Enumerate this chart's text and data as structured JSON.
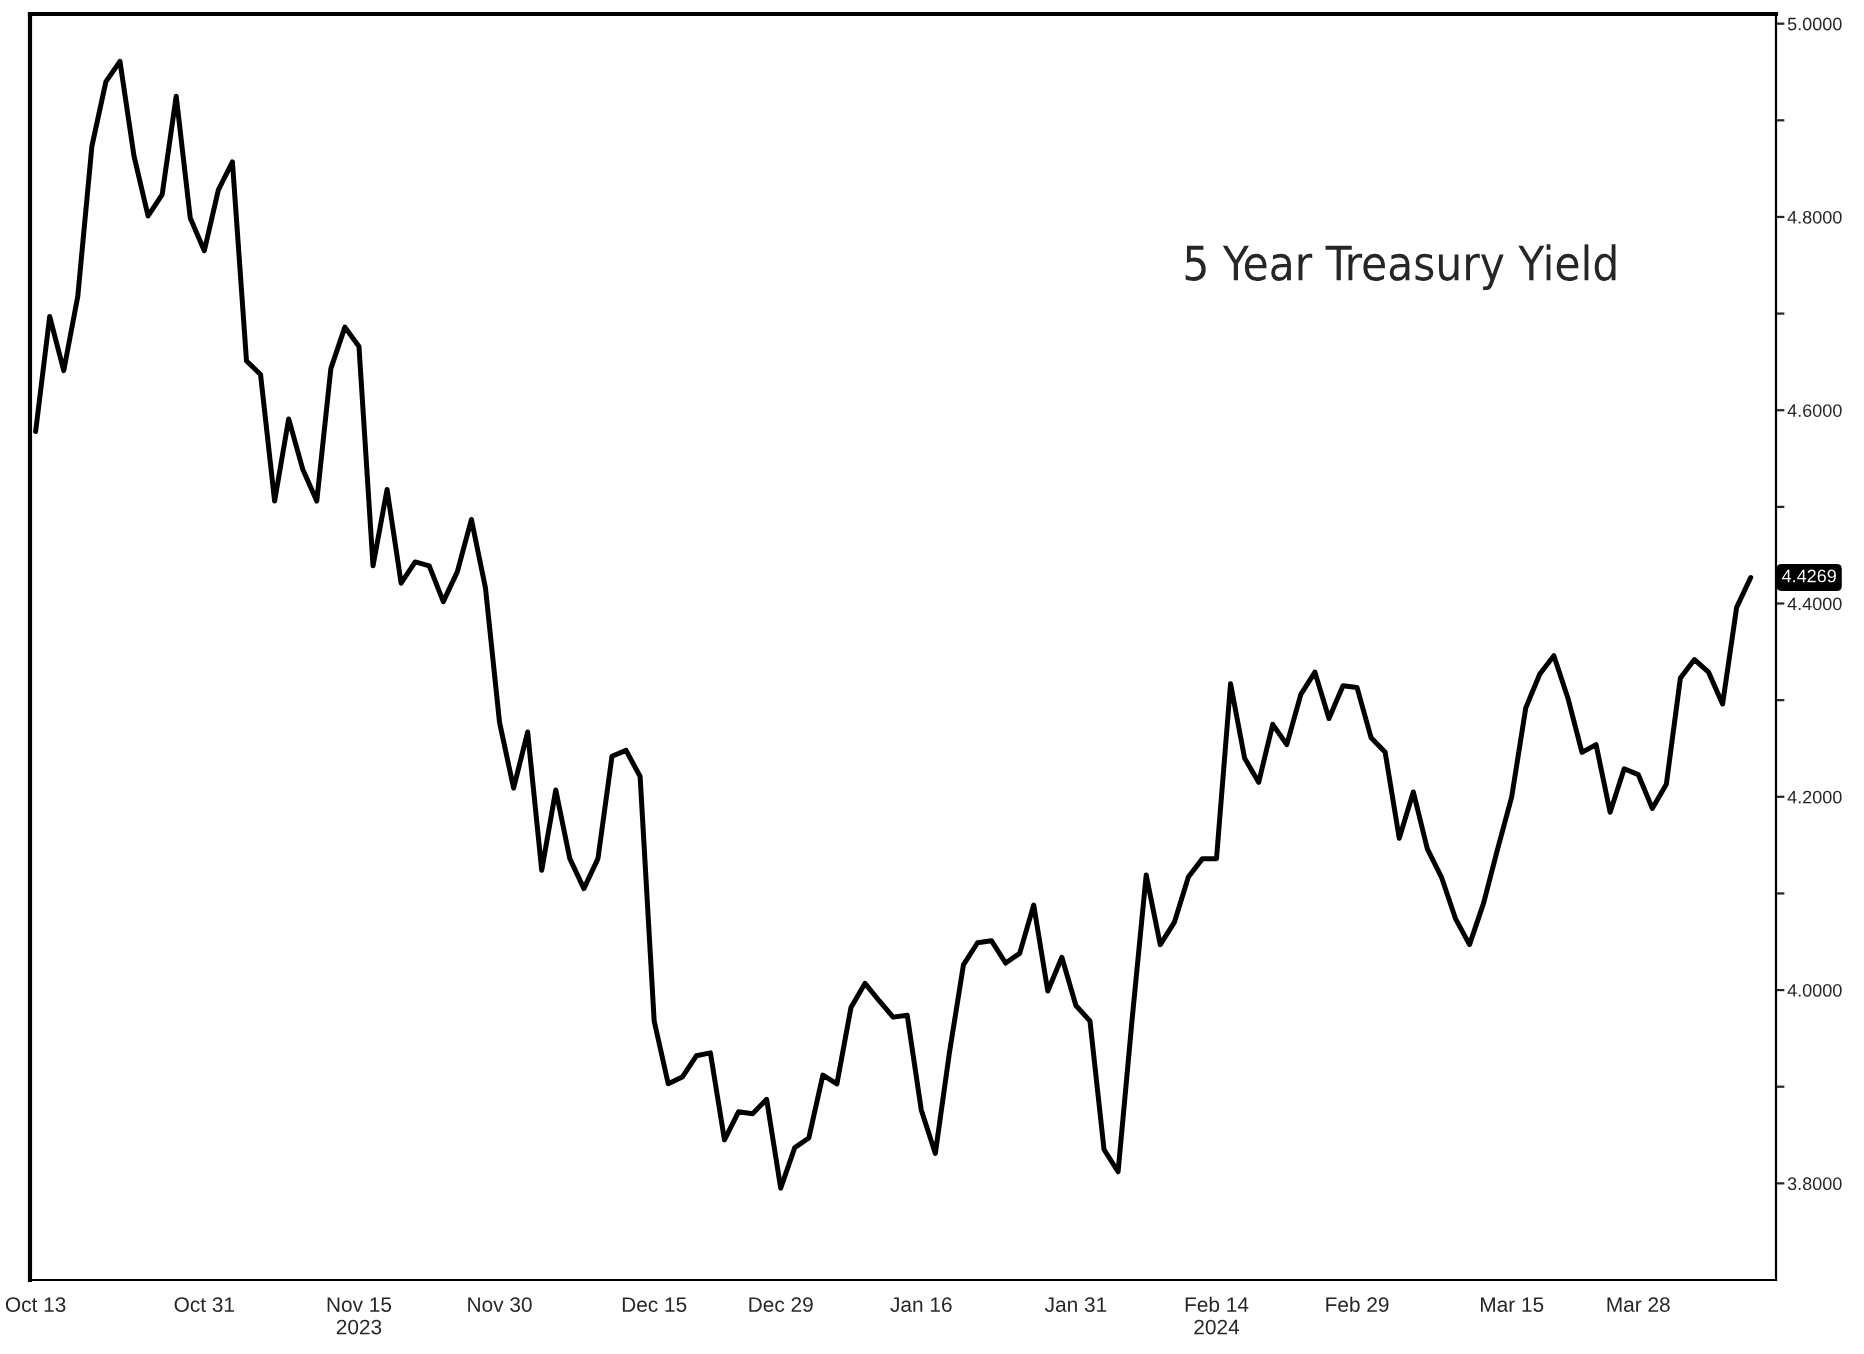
{
  "chart_data": {
    "type": "line",
    "title": "5 Year Treasury Yield",
    "categories": [
      "Oct 13",
      null,
      null,
      null,
      null,
      null,
      null,
      null,
      null,
      null,
      null,
      null,
      "Oct 31",
      null,
      null,
      null,
      null,
      null,
      null,
      null,
      null,
      null,
      null,
      "Nov 15\n2023",
      null,
      null,
      null,
      null,
      null,
      null,
      null,
      null,
      null,
      "Nov 30",
      null,
      null,
      null,
      null,
      null,
      null,
      null,
      null,
      null,
      null,
      "Dec 15",
      null,
      null,
      null,
      null,
      null,
      null,
      null,
      null,
      "Dec 29",
      null,
      null,
      null,
      null,
      null,
      null,
      null,
      null,
      null,
      "Jan 16",
      null,
      null,
      null,
      null,
      null,
      null,
      null,
      null,
      null,
      null,
      "Jan 31",
      null,
      null,
      null,
      null,
      null,
      null,
      null,
      null,
      null,
      "Feb 14\n2024",
      null,
      null,
      null,
      null,
      null,
      null,
      null,
      null,
      null,
      "Feb 29",
      null,
      null,
      null,
      null,
      null,
      null,
      null,
      null,
      null,
      null,
      "Mar 15",
      null,
      null,
      null,
      null,
      null,
      null,
      null,
      null,
      "Mar 28",
      null,
      null,
      null,
      null,
      null,
      null,
      null,
      null
    ],
    "series": [
      {
        "color": "#000000",
        "values": [
          4.578,
          4.697,
          4.641,
          4.718,
          4.873,
          4.94,
          4.961,
          4.863,
          4.801,
          4.823,
          4.925,
          4.799,
          4.765,
          4.828,
          4.857,
          4.651,
          4.637,
          4.506,
          4.591,
          4.539,
          4.506,
          4.643,
          4.686,
          4.666,
          4.439,
          4.518,
          4.421,
          4.443,
          4.439,
          4.402,
          4.433,
          4.487,
          4.416,
          4.277,
          4.209,
          4.267,
          4.124,
          4.207,
          4.136,
          4.105,
          4.136,
          4.242,
          4.248,
          4.221,
          3.968,
          3.903,
          3.91,
          3.932,
          3.935,
          3.845,
          3.874,
          3.872,
          3.887,
          3.795,
          3.837,
          3.847,
          3.912,
          3.903,
          3.982,
          4.007,
          3.989,
          3.972,
          3.974,
          3.876,
          3.831,
          3.935,
          4.026,
          4.049,
          4.051,
          4.028,
          4.038,
          4.088,
          3.999,
          4.034,
          3.984,
          3.968,
          3.835,
          3.812,
          3.97,
          4.119,
          4.047,
          4.07,
          4.117,
          4.136,
          4.136,
          4.317,
          4.24,
          4.215,
          4.275,
          4.254,
          4.306,
          4.329,
          4.281,
          4.315,
          4.313,
          4.261,
          4.246,
          4.157,
          4.205,
          4.146,
          4.117,
          4.074,
          4.047,
          4.09,
          4.146,
          4.2,
          4.292,
          4.327,
          4.346,
          4.302,
          4.246,
          4.254,
          4.184,
          4.229,
          4.223,
          4.188,
          4.213,
          4.323,
          4.342,
          4.329,
          4.296,
          4.396,
          4.4269
        ]
      }
    ],
    "ylim": [
      3.7,
      5.01
    ],
    "yticks": [
      {
        "value": 3.8,
        "label": "3.8000"
      },
      {
        "value": 3.9,
        "label": null
      },
      {
        "value": 4.0,
        "label": "4.0000"
      },
      {
        "value": 4.1,
        "label": null
      },
      {
        "value": 4.2,
        "label": "4.2000"
      },
      {
        "value": 4.3,
        "label": null
      },
      {
        "value": 4.4,
        "label": "4.4000"
      },
      {
        "value": 4.5,
        "label": null
      },
      {
        "value": 4.6,
        "label": "4.6000"
      },
      {
        "value": 4.7,
        "label": null
      },
      {
        "value": 4.8,
        "label": "4.8000"
      },
      {
        "value": 4.9,
        "label": null
      },
      {
        "value": 5.0,
        "label": "5.0000"
      }
    ],
    "annotations": [
      {
        "text": "4.4269",
        "y": 4.4269
      }
    ],
    "grid": false,
    "legend": false
  }
}
